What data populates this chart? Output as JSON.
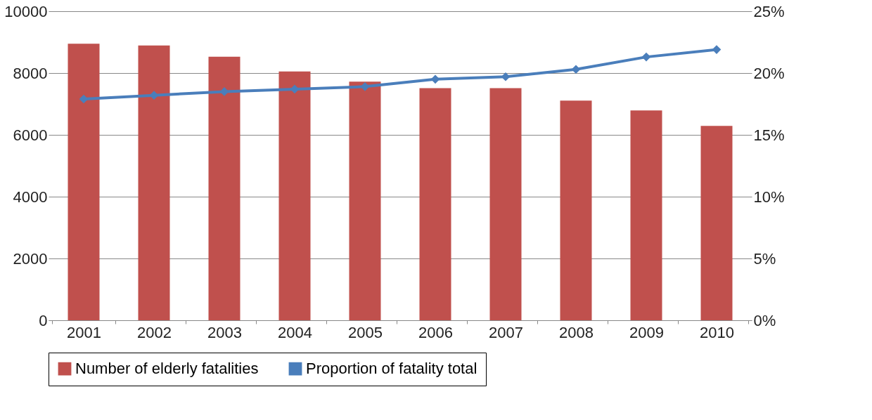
{
  "chart_data": {
    "type": "bar",
    "categories": [
      "2001",
      "2002",
      "2003",
      "2004",
      "2005",
      "2006",
      "2007",
      "2008",
      "2009",
      "2010"
    ],
    "series": [
      {
        "name": "Number of elderly fatalities",
        "color": "#c0504d",
        "values": [
          8950,
          8890,
          8530,
          8050,
          7720,
          7510,
          7510,
          7110,
          6790,
          6290
        ]
      },
      {
        "name": "Proportion of fatality total",
        "type": "line",
        "axis": "y2",
        "color": "#4a7ebb",
        "values": [
          17.9,
          18.2,
          18.5,
          18.7,
          18.9,
          19.5,
          19.7,
          20.3,
          21.3,
          21.9
        ]
      }
    ],
    "ylim": [
      0,
      10000
    ],
    "yticks": [
      0,
      2000,
      4000,
      6000,
      8000,
      10000
    ],
    "y2lim": [
      0,
      25
    ],
    "y2ticks": [
      {
        "value": 0,
        "label": "0%"
      },
      {
        "value": 5,
        "label": "5%"
      },
      {
        "value": 10,
        "label": "10%"
      },
      {
        "value": 15,
        "label": "15%"
      },
      {
        "value": 20,
        "label": "20%"
      },
      {
        "value": 25,
        "label": "25%"
      }
    ],
    "grid": "y",
    "legend": "bottom",
    "marker": "diamond",
    "line_style": "solid"
  }
}
